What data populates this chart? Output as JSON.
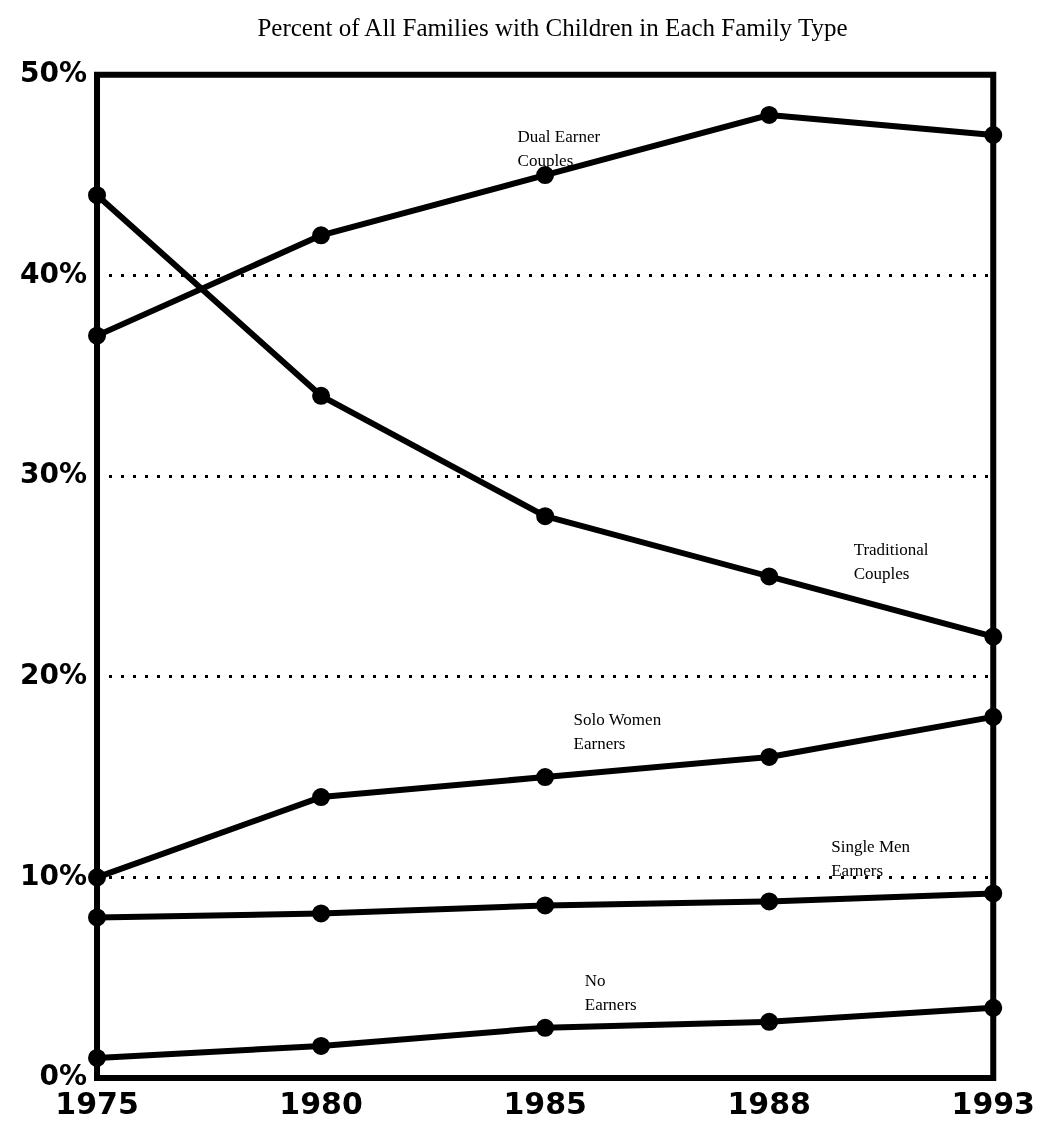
{
  "chart_data": {
    "type": "line",
    "title": "Percent of All Families with Children in Each Family Type",
    "categories": [
      "1975",
      "1980",
      "1985",
      "1988",
      "1993"
    ],
    "series": [
      {
        "name": "Dual Earner Couples",
        "color": "#000000",
        "values": [
          37,
          42,
          45,
          48,
          47
        ]
      },
      {
        "name": "Traditional Couples",
        "color": "#000000",
        "values": [
          44,
          34,
          28,
          25,
          22
        ]
      },
      {
        "name": "Solo Women Earners",
        "color": "#000000",
        "values": [
          10,
          14,
          15,
          16,
          18
        ]
      },
      {
        "name": "Single Men Earners",
        "color": "#000000",
        "values": [
          8,
          8.2,
          8.6,
          8.8,
          9.2
        ]
      },
      {
        "name": "No Earners",
        "color": "#000000",
        "values": [
          1,
          1.6,
          2.5,
          2.8,
          3.5
        ]
      }
    ],
    "ylim": [
      0,
      50
    ],
    "yticks": [
      {
        "value": 0,
        "label": "0%"
      },
      {
        "value": 10,
        "label": "10%"
      },
      {
        "value": 20,
        "label": "20%"
      },
      {
        "value": 30,
        "label": "30%"
      },
      {
        "value": 40,
        "label": "40%"
      },
      {
        "value": 50,
        "label": "50%"
      }
    ],
    "grid": "y",
    "legend": false,
    "marker": "circle",
    "line_style": "solid"
  }
}
